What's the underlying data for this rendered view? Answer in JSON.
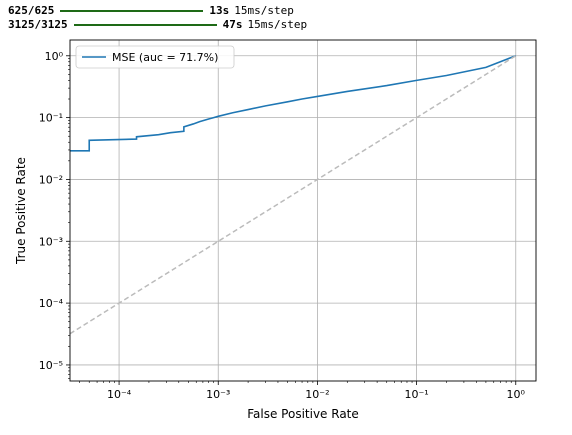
{
  "console": {
    "lines": [
      {
        "steps": "625/625",
        "elapsed": "13s",
        "rate": "15ms/step",
        "progress": 1.0
      },
      {
        "steps": "3125/3125",
        "elapsed": "47s",
        "rate": "15ms/step",
        "progress": 1.0
      }
    ],
    "bar_color": "#1e6a16"
  },
  "chart_data": {
    "type": "line",
    "xlabel": "False Positive Rate",
    "ylabel": "True Positive Rate",
    "xscale": "log",
    "yscale": "log",
    "xlim": [
      3.2e-05,
      1.6
    ],
    "ylim": [
      5.5e-06,
      1.8
    ],
    "xticks": [
      {
        "value": 0.0001,
        "label": "10⁻⁴"
      },
      {
        "value": 0.001,
        "label": "10⁻³"
      },
      {
        "value": 0.01,
        "label": "10⁻²"
      },
      {
        "value": 0.1,
        "label": "10⁻¹"
      },
      {
        "value": 1,
        "label": "10⁰"
      }
    ],
    "yticks": [
      {
        "value": 1e-05,
        "label": "10⁻⁵"
      },
      {
        "value": 0.0001,
        "label": "10⁻⁴"
      },
      {
        "value": 0.001,
        "label": "10⁻³"
      },
      {
        "value": 0.01,
        "label": "10⁻²"
      },
      {
        "value": 0.1,
        "label": "10⁻¹"
      },
      {
        "value": 1,
        "label": "10⁰"
      }
    ],
    "grid": true,
    "legend_position": "top-left",
    "series": [
      {
        "name": "MSE (auc = 71.7%)",
        "color": "#1f77b4",
        "x": [
          3.2e-05,
          5e-05,
          5e-05,
          0.00015,
          0.00015,
          0.00025,
          0.00033,
          0.00045,
          0.00045,
          0.00056,
          0.00065,
          0.0008,
          0.0009,
          0.001,
          0.0014,
          0.002,
          0.003,
          0.005,
          0.007,
          0.01,
          0.02,
          0.05,
          0.1,
          0.2,
          0.5,
          1.0
        ],
        "y": [
          0.029,
          0.029,
          0.043,
          0.045,
          0.049,
          0.053,
          0.057,
          0.06,
          0.071,
          0.079,
          0.086,
          0.095,
          0.1,
          0.105,
          0.12,
          0.135,
          0.155,
          0.18,
          0.2,
          0.22,
          0.265,
          0.33,
          0.4,
          0.48,
          0.65,
          1.0
        ]
      },
      {
        "name": "",
        "color": "#bbbbbb",
        "dashed": true,
        "x": [
          3.2e-05,
          1.0
        ],
        "y": [
          3.2e-05,
          1.0
        ]
      }
    ]
  }
}
